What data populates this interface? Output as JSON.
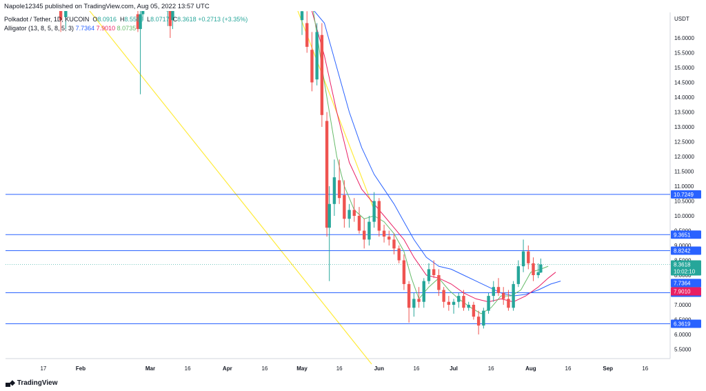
{
  "header": {
    "published": "Napole12345 published on TradingView.com, Aug 05, 2022 13:57 UTC",
    "symbol": "Polkadot / Tether, 1D, KUCOIN",
    "o_label": "O",
    "o_value": "8.0916",
    "h_label": "H",
    "h_value": "8.5566",
    "l_label": "L",
    "l_value": "8.0717",
    "c_label": "C",
    "c_value": "8.3618",
    "change": "+0.2713 (+3.35%)",
    "indicator_name": "Alligator (13, 8, 5, 8, 5, 3)",
    "indicator_values": [
      "7.7364",
      "7.9010",
      "8.0735"
    ]
  },
  "footer": {
    "brand": "TradingView"
  },
  "colors": {
    "up": "#26a69a",
    "down": "#ef5350",
    "jaw": "#2962ff",
    "teeth": "#e91e63",
    "lips": "#66bb6a",
    "hline": "#2962ff",
    "trend": "#ffeb3b"
  },
  "chart_data": {
    "type": "candlestick",
    "currency": "USDT",
    "y_ticks": [
      "16.0000",
      "15.5000",
      "15.0000",
      "14.5000",
      "14.0000",
      "13.5000",
      "13.0000",
      "12.5000",
      "12.0000",
      "11.5000",
      "11.0000",
      "10.5000",
      "10.0000",
      "9.5000",
      "9.0000",
      "8.5000",
      "8.0000",
      "7.5000",
      "7.0000",
      "6.5000",
      "6.0000",
      "5.5000"
    ],
    "x_ticks": [
      "17",
      "Feb",
      "Mar",
      "16",
      "Apr",
      "16",
      "May",
      "16",
      "Jun",
      "16",
      "Jul",
      "16",
      "Aug",
      "16",
      "Sep",
      "16"
    ],
    "ylim": [
      5.0,
      17.0
    ],
    "horizontal_levels": [
      {
        "value": 10.7249,
        "label": "10.7249"
      },
      {
        "value": 9.3651,
        "label": "9.3651"
      },
      {
        "value": 8.8242,
        "label": "8.8242"
      },
      {
        "value": 7.4073,
        "label": "7.4073"
      },
      {
        "value": 6.3619,
        "label": "6.3619"
      }
    ],
    "price_tags": [
      {
        "value": 8.3618,
        "label": "8.3618",
        "sub": "10:02:10",
        "color": "#26a69a"
      },
      {
        "value": 8.0735,
        "label": "8.0735",
        "color": "#66bb6a"
      },
      {
        "value": 7.901,
        "label": "7.9010",
        "color": "#e91e63"
      },
      {
        "value": 7.7364,
        "label": "7.7364",
        "color": "#2962ff"
      }
    ],
    "trend_lines": [
      {
        "from": [
          "Jan 30",
          17.5
        ],
        "to": [
          "May 29",
          5.0
        ]
      },
      {
        "from": [
          "Apr 28",
          17.2
        ],
        "to": [
          "May 30",
          10.2
        ]
      }
    ],
    "ohlc_series": [
      {
        "d": "May 01",
        "o": 16.6,
        "h": 17.0,
        "l": 16.1,
        "c": 16.9
      },
      {
        "d": "May 03",
        "o": 16.5,
        "h": 16.9,
        "l": 15.5,
        "c": 15.7
      },
      {
        "d": "May 05",
        "o": 15.6,
        "h": 16.2,
        "l": 14.2,
        "c": 14.5
      },
      {
        "d": "May 07",
        "o": 14.6,
        "h": 16.5,
        "l": 14.4,
        "c": 16.2
      },
      {
        "d": "May 09",
        "o": 16.1,
        "h": 16.5,
        "l": 13.0,
        "c": 13.4
      },
      {
        "d": "May 11",
        "o": 13.2,
        "h": 13.5,
        "l": 9.3,
        "c": 9.6
      },
      {
        "d": "May 12",
        "o": 9.6,
        "h": 11.0,
        "l": 7.8,
        "c": 10.4
      },
      {
        "d": "May 14",
        "o": 10.4,
        "h": 11.9,
        "l": 10.0,
        "c": 11.3
      },
      {
        "d": "May 16",
        "o": 11.2,
        "h": 11.9,
        "l": 10.4,
        "c": 10.6
      },
      {
        "d": "May 18",
        "o": 10.7,
        "h": 11.2,
        "l": 9.6,
        "c": 9.9
      },
      {
        "d": "May 20",
        "o": 9.9,
        "h": 10.4,
        "l": 9.6,
        "c": 10.2
      },
      {
        "d": "May 22",
        "o": 10.2,
        "h": 10.6,
        "l": 9.8,
        "c": 10.0
      },
      {
        "d": "May 24",
        "o": 10.0,
        "h": 10.3,
        "l": 9.4,
        "c": 9.5
      },
      {
        "d": "May 26",
        "o": 9.5,
        "h": 9.9,
        "l": 8.9,
        "c": 9.2
      },
      {
        "d": "May 28",
        "o": 9.2,
        "h": 10.0,
        "l": 9.0,
        "c": 9.8
      },
      {
        "d": "May 30",
        "o": 9.8,
        "h": 10.8,
        "l": 9.6,
        "c": 10.5
      },
      {
        "d": "Jun 01",
        "o": 10.5,
        "h": 10.6,
        "l": 9.3,
        "c": 9.5
      },
      {
        "d": "Jun 03",
        "o": 9.5,
        "h": 9.7,
        "l": 9.1,
        "c": 9.3
      },
      {
        "d": "Jun 05",
        "o": 9.3,
        "h": 9.5,
        "l": 9.0,
        "c": 9.2
      },
      {
        "d": "Jun 07",
        "o": 9.2,
        "h": 9.4,
        "l": 8.7,
        "c": 8.9
      },
      {
        "d": "Jun 09",
        "o": 8.9,
        "h": 9.0,
        "l": 8.4,
        "c": 8.5
      },
      {
        "d": "Jun 11",
        "o": 8.5,
        "h": 8.7,
        "l": 7.5,
        "c": 7.7
      },
      {
        "d": "Jun 13",
        "o": 7.7,
        "h": 7.8,
        "l": 6.4,
        "c": 6.9
      },
      {
        "d": "Jun 15",
        "o": 6.9,
        "h": 7.4,
        "l": 6.6,
        "c": 7.2
      },
      {
        "d": "Jun 17",
        "o": 7.2,
        "h": 7.6,
        "l": 6.9,
        "c": 7.1
      },
      {
        "d": "Jun 19",
        "o": 7.1,
        "h": 7.9,
        "l": 6.9,
        "c": 7.8
      },
      {
        "d": "Jun 21",
        "o": 7.8,
        "h": 8.4,
        "l": 7.7,
        "c": 8.2
      },
      {
        "d": "Jun 23",
        "o": 8.2,
        "h": 8.5,
        "l": 7.9,
        "c": 8.0
      },
      {
        "d": "Jun 25",
        "o": 8.0,
        "h": 8.2,
        "l": 7.3,
        "c": 7.5
      },
      {
        "d": "Jun 27",
        "o": 7.5,
        "h": 7.6,
        "l": 6.9,
        "c": 7.1
      },
      {
        "d": "Jun 29",
        "o": 7.1,
        "h": 7.3,
        "l": 6.8,
        "c": 7.0
      },
      {
        "d": "Jul 01",
        "o": 7.0,
        "h": 7.2,
        "l": 6.7,
        "c": 7.1
      },
      {
        "d": "Jul 03",
        "o": 7.1,
        "h": 7.4,
        "l": 6.9,
        "c": 7.3
      },
      {
        "d": "Jul 05",
        "o": 7.3,
        "h": 7.5,
        "l": 6.8,
        "c": 6.9
      },
      {
        "d": "Jul 07",
        "o": 6.9,
        "h": 7.1,
        "l": 6.8,
        "c": 7.0
      },
      {
        "d": "Jul 09",
        "o": 7.0,
        "h": 7.1,
        "l": 6.5,
        "c": 6.6
      },
      {
        "d": "Jul 11",
        "o": 6.6,
        "h": 6.8,
        "l": 6.0,
        "c": 6.3
      },
      {
        "d": "Jul 13",
        "o": 6.3,
        "h": 6.9,
        "l": 6.2,
        "c": 6.8
      },
      {
        "d": "Jul 15",
        "o": 6.8,
        "h": 7.4,
        "l": 6.7,
        "c": 7.3
      },
      {
        "d": "Jul 17",
        "o": 7.3,
        "h": 7.8,
        "l": 7.1,
        "c": 7.6
      },
      {
        "d": "Jul 19",
        "o": 7.6,
        "h": 7.9,
        "l": 7.3,
        "c": 7.4
      },
      {
        "d": "Jul 21",
        "o": 7.4,
        "h": 7.6,
        "l": 7.0,
        "c": 7.2
      },
      {
        "d": "Jul 23",
        "o": 7.2,
        "h": 7.5,
        "l": 6.8,
        "c": 6.9
      },
      {
        "d": "Jul 25",
        "o": 6.9,
        "h": 7.8,
        "l": 6.8,
        "c": 7.7
      },
      {
        "d": "Jul 27",
        "o": 7.7,
        "h": 8.5,
        "l": 7.6,
        "c": 8.3
      },
      {
        "d": "Jul 29",
        "o": 8.3,
        "h": 9.2,
        "l": 8.1,
        "c": 8.8
      },
      {
        "d": "Jul 31",
        "o": 8.8,
        "h": 9.0,
        "l": 8.2,
        "c": 8.4
      },
      {
        "d": "Aug 02",
        "o": 8.4,
        "h": 8.6,
        "l": 7.8,
        "c": 8.0
      },
      {
        "d": "Aug 04",
        "o": 8.0,
        "h": 8.4,
        "l": 7.9,
        "c": 8.1
      },
      {
        "d": "Aug 05",
        "o": 8.09,
        "h": 8.56,
        "l": 8.07,
        "c": 8.36
      }
    ],
    "early_ohlc_series": [
      {
        "d": "Jan 24",
        "o": 17.0,
        "h": 17.3,
        "l": 16.2,
        "c": 16.6
      },
      {
        "d": "Jan 26",
        "o": 16.7,
        "h": 17.4,
        "l": 16.3,
        "c": 17.1
      },
      {
        "d": "Feb 24",
        "o": 16.8,
        "h": 17.2,
        "l": 16.2,
        "c": 16.3
      },
      {
        "d": "Feb 25",
        "o": 16.3,
        "h": 17.0,
        "l": 14.1,
        "c": 16.8
      },
      {
        "d": "Feb 26",
        "o": 16.8,
        "h": 17.3,
        "l": 16.6,
        "c": 17.1
      },
      {
        "d": "Mar 08",
        "o": 16.9,
        "h": 17.3,
        "l": 16.4,
        "c": 17.2
      },
      {
        "d": "Mar 09",
        "o": 17.0,
        "h": 17.3,
        "l": 16.0,
        "c": 16.4
      },
      {
        "d": "Mar 10",
        "o": 16.6,
        "h": 17.2,
        "l": 16.3,
        "c": 17.0
      }
    ],
    "alligator": {
      "jaw": [
        [
          17.2,
          "May 03"
        ],
        [
          16.5,
          "May 10"
        ],
        [
          15.0,
          "May 15"
        ],
        [
          13.5,
          "May 20"
        ],
        [
          12.3,
          "May 25"
        ],
        [
          11.4,
          "May 30"
        ],
        [
          10.9,
          "Jun 03"
        ],
        [
          10.4,
          "Jun 07"
        ],
        [
          9.8,
          "Jun 11"
        ],
        [
          9.2,
          "Jun 15"
        ],
        [
          8.6,
          "Jun 20"
        ],
        [
          8.3,
          "Jun 25"
        ],
        [
          8.2,
          "Jun 30"
        ],
        [
          8.0,
          "Jul 05"
        ],
        [
          7.8,
          "Jul 10"
        ],
        [
          7.6,
          "Jul 15"
        ],
        [
          7.4,
          "Jul 20"
        ],
        [
          7.3,
          "Jul 25"
        ],
        [
          7.35,
          "Jul 30"
        ],
        [
          7.5,
          "Aug 04"
        ],
        [
          7.7,
          "Aug 09"
        ],
        [
          7.8,
          "Aug 13"
        ]
      ],
      "teeth": [
        [
          17.2,
          "May 04"
        ],
        [
          15.4,
          "May 10"
        ],
        [
          13.5,
          "May 15"
        ],
        [
          11.8,
          "May 20"
        ],
        [
          10.9,
          "May 25"
        ],
        [
          10.4,
          "May 30"
        ],
        [
          10.0,
          "Jun 03"
        ],
        [
          9.6,
          "Jun 07"
        ],
        [
          9.2,
          "Jun 11"
        ],
        [
          8.6,
          "Jun 15"
        ],
        [
          8.0,
          "Jun 20"
        ],
        [
          7.9,
          "Jun 25"
        ],
        [
          7.7,
          "Jun 30"
        ],
        [
          7.4,
          "Jul 05"
        ],
        [
          7.2,
          "Jul 10"
        ],
        [
          7.1,
          "Jul 15"
        ],
        [
          7.2,
          "Jul 20"
        ],
        [
          7.1,
          "Jul 25"
        ],
        [
          7.3,
          "Jul 30"
        ],
        [
          7.6,
          "Aug 04"
        ],
        [
          7.9,
          "Aug 08"
        ],
        [
          8.1,
          "Aug 11"
        ]
      ],
      "lips": [
        [
          17.2,
          "May 05"
        ],
        [
          14.5,
          "May 10"
        ],
        [
          12.0,
          "May 15"
        ],
        [
          11.0,
          "May 18"
        ],
        [
          10.2,
          "May 22"
        ],
        [
          9.9,
          "May 26"
        ],
        [
          10.0,
          "May 30"
        ],
        [
          9.8,
          "Jun 03"
        ],
        [
          9.4,
          "Jun 07"
        ],
        [
          8.8,
          "Jun 11"
        ],
        [
          7.9,
          "Jun 14"
        ],
        [
          7.2,
          "Jun 17"
        ],
        [
          7.6,
          "Jun 21"
        ],
        [
          7.9,
          "Jun 25"
        ],
        [
          7.5,
          "Jun 29"
        ],
        [
          7.2,
          "Jul 03"
        ],
        [
          6.9,
          "Jul 08"
        ],
        [
          6.7,
          "Jul 12"
        ],
        [
          6.9,
          "Jul 16"
        ],
        [
          7.3,
          "Jul 20"
        ],
        [
          7.3,
          "Jul 24"
        ],
        [
          7.5,
          "Jul 28"
        ],
        [
          8.1,
          "Aug 01"
        ],
        [
          8.2,
          "Aug 05"
        ],
        [
          8.3,
          "Aug 08"
        ]
      ]
    }
  }
}
